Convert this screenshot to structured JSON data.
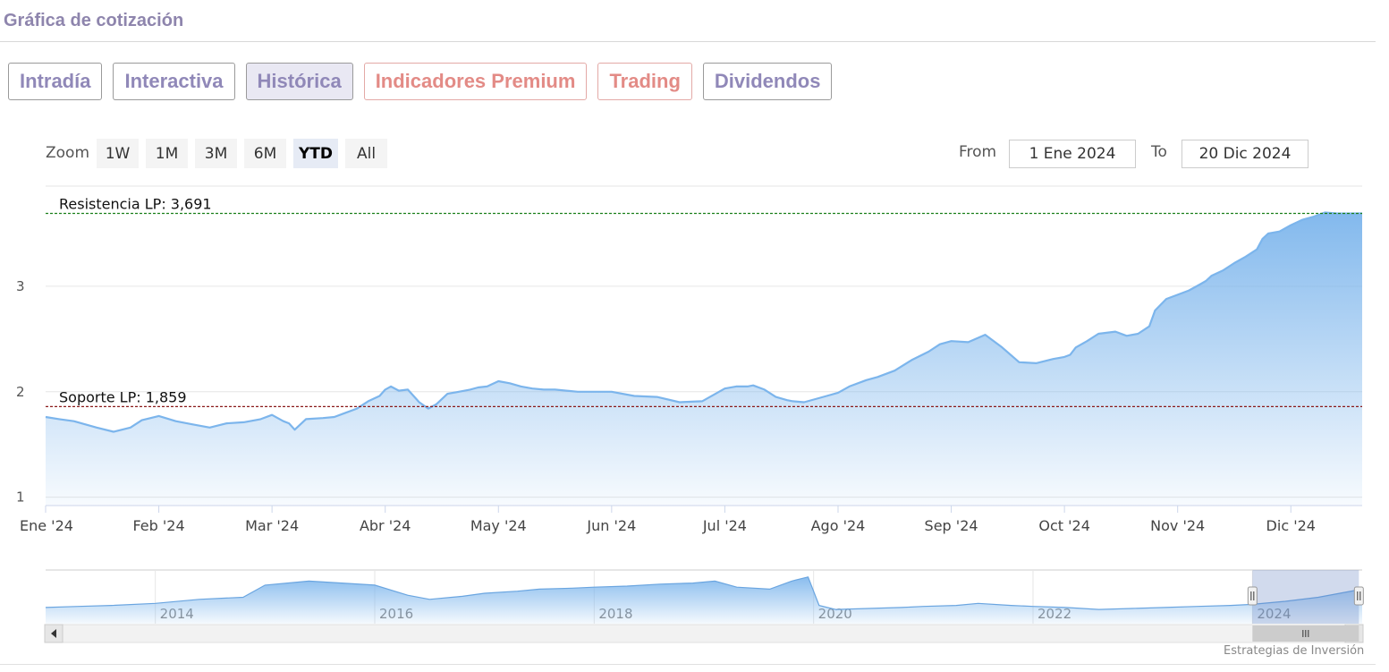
{
  "header": {
    "title": "Gráfica de cotización"
  },
  "tabs": [
    {
      "label": "Intradía",
      "style": "purple",
      "active": false
    },
    {
      "label": "Interactiva",
      "style": "purple",
      "active": false
    },
    {
      "label": "Histórica",
      "style": "purple",
      "active": true
    },
    {
      "label": "Indicadores Premium",
      "style": "red",
      "active": false
    },
    {
      "label": "Trading",
      "style": "red",
      "active": false
    },
    {
      "label": "Dividendos",
      "style": "purple",
      "active": false
    }
  ],
  "zoom": {
    "label": "Zoom",
    "buttons": [
      "1W",
      "1M",
      "3M",
      "6M",
      "YTD",
      "All"
    ],
    "selected": "YTD"
  },
  "range": {
    "from_label": "From",
    "from_value": "1 Ene 2024",
    "to_label": "To",
    "to_value": "20 Dic 2024"
  },
  "credit": "Estrategias de Inversión",
  "colors": {
    "title": "#8e85ad",
    "tab_purple": "#9088b8",
    "tab_red": "#e38b86",
    "series_line": "#7cb5ec",
    "resistance": "#1a7f1a",
    "support": "#8b1a1a"
  },
  "chart_data": {
    "type": "area",
    "y_ticks": [
      "1",
      "2",
      "3"
    ],
    "ylim": [
      0.92,
      3.95
    ],
    "x_ticks": [
      "Ene '24",
      "Feb '24",
      "Mar '24",
      "Abr '24",
      "May '24",
      "Jun '24",
      "Jul '24",
      "Ago '24",
      "Sep '24",
      "Oct '24",
      "Nov '24",
      "Dic '24"
    ],
    "x_tick_months": [
      0,
      1,
      2,
      3,
      4,
      5,
      6,
      7,
      8,
      9,
      10,
      11
    ],
    "x_range_months": [
      0,
      11.63
    ],
    "series": [
      {
        "x": [
          0,
          0.12,
          0.25,
          0.45,
          0.6,
          0.75,
          0.85,
          1.0,
          1.15,
          1.3,
          1.45,
          1.6,
          1.75,
          1.9,
          2.0,
          2.1,
          2.15,
          2.2,
          2.3,
          2.45,
          2.55,
          2.65,
          2.75,
          2.85,
          2.95,
          3.0,
          3.05,
          3.12,
          3.2,
          3.3,
          3.38,
          3.45,
          3.55,
          3.65,
          3.75,
          3.82,
          3.9,
          4.0,
          4.1,
          4.2,
          4.3,
          4.4,
          4.5,
          4.6,
          4.7,
          4.8,
          5.0,
          5.2,
          5.4,
          5.6,
          5.8,
          6.0,
          6.1,
          6.2,
          6.25,
          6.35,
          6.45,
          6.55,
          6.6,
          6.7,
          6.8,
          6.9,
          7.0,
          7.1,
          7.25,
          7.35,
          7.5,
          7.65,
          7.8,
          7.9,
          8.0,
          8.15,
          8.3,
          8.45,
          8.6,
          8.75,
          8.9,
          9.0,
          9.05,
          9.1,
          9.2,
          9.3,
          9.45,
          9.55,
          9.65,
          9.75,
          9.8,
          9.9,
          10.0,
          10.1,
          10.2,
          10.25,
          10.3,
          10.4,
          10.5,
          10.6,
          10.7,
          10.75,
          10.8,
          10.9,
          11.0,
          11.1,
          11.2,
          11.3,
          11.4,
          11.5,
          11.63
        ],
        "y": [
          1.76,
          1.74,
          1.72,
          1.66,
          1.62,
          1.66,
          1.73,
          1.77,
          1.72,
          1.69,
          1.66,
          1.7,
          1.71,
          1.74,
          1.78,
          1.72,
          1.7,
          1.64,
          1.74,
          1.75,
          1.76,
          1.8,
          1.84,
          1.91,
          1.96,
          2.02,
          2.05,
          2.01,
          2.02,
          1.9,
          1.84,
          1.88,
          1.98,
          2.0,
          2.02,
          2.04,
          2.05,
          2.1,
          2.08,
          2.05,
          2.03,
          2.02,
          2.02,
          2.01,
          2.0,
          2.0,
          2.0,
          1.96,
          1.95,
          1.9,
          1.91,
          2.03,
          2.05,
          2.05,
          2.06,
          2.02,
          1.95,
          1.92,
          1.91,
          1.9,
          1.93,
          1.96,
          1.99,
          2.05,
          2.11,
          2.14,
          2.2,
          2.3,
          2.38,
          2.45,
          2.48,
          2.47,
          2.54,
          2.42,
          2.28,
          2.27,
          2.31,
          2.33,
          2.35,
          2.42,
          2.48,
          2.55,
          2.57,
          2.53,
          2.55,
          2.62,
          2.77,
          2.88,
          2.92,
          2.96,
          3.02,
          3.05,
          3.1,
          3.15,
          3.22,
          3.28,
          3.35,
          3.45,
          3.5,
          3.52,
          3.58,
          3.63,
          3.66,
          3.7,
          3.691,
          3.69,
          3.691
        ]
      }
    ],
    "lines": [
      {
        "label": "Resistencia LP: 3,691",
        "value": 3.691,
        "color": "#1a7f1a",
        "style": "dashed"
      },
      {
        "label": "Soporte LP: 1,859",
        "value": 1.859,
        "color": "#8b1a1a",
        "style": "dashed"
      }
    ],
    "navigator": {
      "x_ticks": [
        "2014",
        "2016",
        "2018",
        "2020",
        "2022",
        "2024"
      ],
      "x_range_years": [
        2013.0,
        2025.0
      ],
      "x": [
        2013.0,
        2013.3,
        2013.6,
        2014.0,
        2014.4,
        2014.8,
        2015.0,
        2015.4,
        2015.7,
        2016.0,
        2016.3,
        2016.5,
        2016.8,
        2017.0,
        2017.3,
        2017.5,
        2017.8,
        2018.0,
        2018.3,
        2018.6,
        2018.9,
        2019.1,
        2019.3,
        2019.6,
        2019.8,
        2019.95,
        2020.05,
        2020.2,
        2020.5,
        2020.8,
        2021.0,
        2021.3,
        2021.5,
        2021.8,
        2022.0,
        2022.3,
        2022.6,
        2022.9,
        2023.2,
        2023.5,
        2023.8,
        2024.0,
        2024.3,
        2024.6,
        2025.0
      ],
      "y": [
        0.8,
        0.85,
        0.9,
        1.0,
        1.2,
        1.3,
        1.9,
        2.1,
        2.0,
        1.9,
        1.4,
        1.2,
        1.35,
        1.5,
        1.6,
        1.7,
        1.75,
        1.8,
        1.85,
        1.95,
        2.0,
        2.1,
        1.8,
        1.7,
        2.1,
        2.3,
        0.9,
        0.7,
        0.75,
        0.8,
        0.85,
        0.9,
        1.0,
        0.9,
        0.85,
        0.8,
        0.7,
        0.75,
        0.8,
        0.85,
        0.9,
        0.95,
        1.1,
        1.3,
        1.7
      ],
      "selection": [
        2024.0,
        2024.97
      ]
    }
  }
}
